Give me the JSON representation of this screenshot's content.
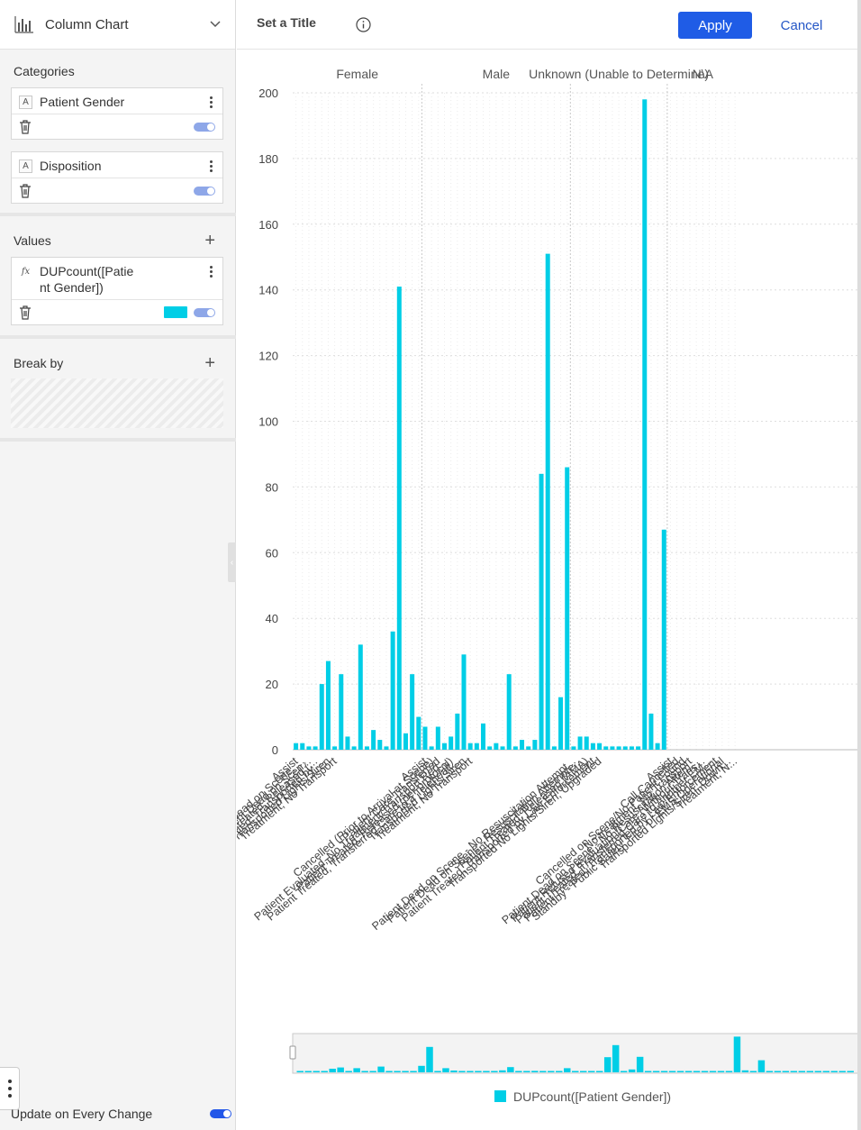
{
  "sidebar": {
    "chart_type": {
      "label": "Column Chart",
      "icon": "column-chart-icon"
    },
    "categories": {
      "title": "Categories",
      "items": [
        {
          "label": "Patient Gender",
          "type_badge": "A"
        },
        {
          "label": "Disposition",
          "type_badge": "A"
        }
      ]
    },
    "values": {
      "title": "Values",
      "items": [
        {
          "label_line1": "DUPcount([Patie",
          "label_line2": "nt Gender])",
          "type_badge": "fx",
          "color": "#00cee6"
        }
      ]
    },
    "break_by": {
      "title": "Break by"
    },
    "update_label": "Update on Every Change"
  },
  "header": {
    "title": "Set a Title",
    "apply_label": "Apply",
    "cancel_label": "Cancel"
  },
  "chart_data": {
    "type": "bar",
    "series_name": "DUPcount([Patient Gender])",
    "color": "#00cee6",
    "ylim": [
      0,
      200
    ],
    "yticks": [
      0,
      20,
      40,
      60,
      80,
      100,
      120,
      140,
      160,
      180,
      200
    ],
    "grid": true,
    "legend": "bottom",
    "groups": [
      {
        "name": "Female",
        "items": [
          {
            "label": "Assist",
            "value": 2
          },
          {
            "label": "Dead on Scene, ...",
            "value": 2
          },
          {
            "label": "Patient Dead on Scen...",
            "value": 1
          },
          {
            "label": "Patient Treated, Released (...",
            "value": 1
          },
          {
            "label": "Patient Treated, Transported by ...",
            "value": 20
          },
          {
            "label": "Transported Lights/Siren",
            "value": 27
          },
          {
            "label": "Treatment, No Transport",
            "value": 1
          },
          {
            "label": "",
            "value": 23
          },
          {
            "label": "",
            "value": 4
          },
          {
            "label": "",
            "value": 1
          },
          {
            "label": "",
            "value": 32
          },
          {
            "label": "",
            "value": 1
          },
          {
            "label": "",
            "value": 6
          },
          {
            "label": "",
            "value": 3
          },
          {
            "label": "",
            "value": 1
          },
          {
            "label": "",
            "value": 36
          },
          {
            "label": "",
            "value": 141
          },
          {
            "label": "",
            "value": 5
          },
          {
            "label": "",
            "value": 23
          },
          {
            "label": "",
            "value": 10
          }
        ]
      },
      {
        "name": "Male",
        "items": [
          {
            "label": "Assist",
            "value": 7
          },
          {
            "label": "Cancelled (Prior to Arrival at Scene)",
            "value": 1
          },
          {
            "label": "Patient Care Transferred",
            "value": 7
          },
          {
            "label": "Patient Evaluated, No Treatment/Transport Req...",
            "value": 2
          },
          {
            "label": "Patient Treated, Released (per protocol)",
            "value": 4
          },
          {
            "label": "Patient Treated, Transferred Care to a Telehealt...",
            "value": 11
          },
          {
            "label": "Transported Lights/Siren",
            "value": 29
          },
          {
            "label": "Treatment, No Transport",
            "value": 2
          },
          {
            "label": "",
            "value": 2
          },
          {
            "label": "",
            "value": 8
          },
          {
            "label": "",
            "value": 1
          },
          {
            "label": "",
            "value": 2
          },
          {
            "label": "",
            "value": 1
          },
          {
            "label": "",
            "value": 23
          },
          {
            "label": "",
            "value": 1
          },
          {
            "label": "",
            "value": 3
          },
          {
            "label": "",
            "value": 1
          },
          {
            "label": "",
            "value": 3
          },
          {
            "label": "",
            "value": 84
          },
          {
            "label": "",
            "value": 151
          },
          {
            "label": "",
            "value": 1
          },
          {
            "label": "",
            "value": 16
          },
          {
            "label": "",
            "value": 86
          }
        ]
      },
      {
        "name": "Unknown (Unable to Determine)",
        "items": [
          {
            "label": "Patient Dead on Scene - No Resuscitation Attempt...",
            "value": 1
          },
          {
            "label": "Patient Dead on Scene - Resuscitation Attempte...",
            "value": 4
          },
          {
            "label": "Patient Treated, Released (AMA)",
            "value": 4
          },
          {
            "label": "Patient Treated, Transported by Law Enforcement",
            "value": 2
          },
          {
            "label": "Transported No Lights/Siren, Upgraded",
            "value": 2
          },
          {
            "label": "",
            "value": 1
          },
          {
            "label": "",
            "value": 1
          },
          {
            "label": "",
            "value": 1
          },
          {
            "label": "",
            "value": 1
          },
          {
            "label": "",
            "value": 1
          },
          {
            "label": "",
            "value": 1
          },
          {
            "label": "",
            "value": 198
          },
          {
            "label": "",
            "value": 11
          },
          {
            "label": "",
            "value": 2
          },
          {
            "label": "",
            "value": 67
          }
        ]
      },
      {
        "name": "N\\A",
        "items": [
          {
            "label": "Assist",
            "value": 0
          },
          {
            "label": "Call Cancelled",
            "value": 0
          },
          {
            "label": "Cancelled on Scene/No Patient Found",
            "value": 0
          },
          {
            "label": "No treatment, No Transport",
            "value": 0
          },
          {
            "label": "Patient Dead on Scene - No Resuscitation Attem...",
            "value": 0
          },
          {
            "label": "Patient Refused Evaluation/Care (Without Trans...",
            "value": 0
          },
          {
            "label": "Patient Treated, Transferred Care to Another EM...",
            "value": 0
          },
          {
            "label": "Patient Treated, Transported by Law Enforcement",
            "value": 0
          },
          {
            "label": "Standby - Public Safety, Fire, or EMS Operational",
            "value": 0
          },
          {
            "label": "Transported Lights/Siren, Down...",
            "value": 0
          },
          {
            "label": "Treatment, N...",
            "value": 0
          }
        ]
      }
    ]
  }
}
